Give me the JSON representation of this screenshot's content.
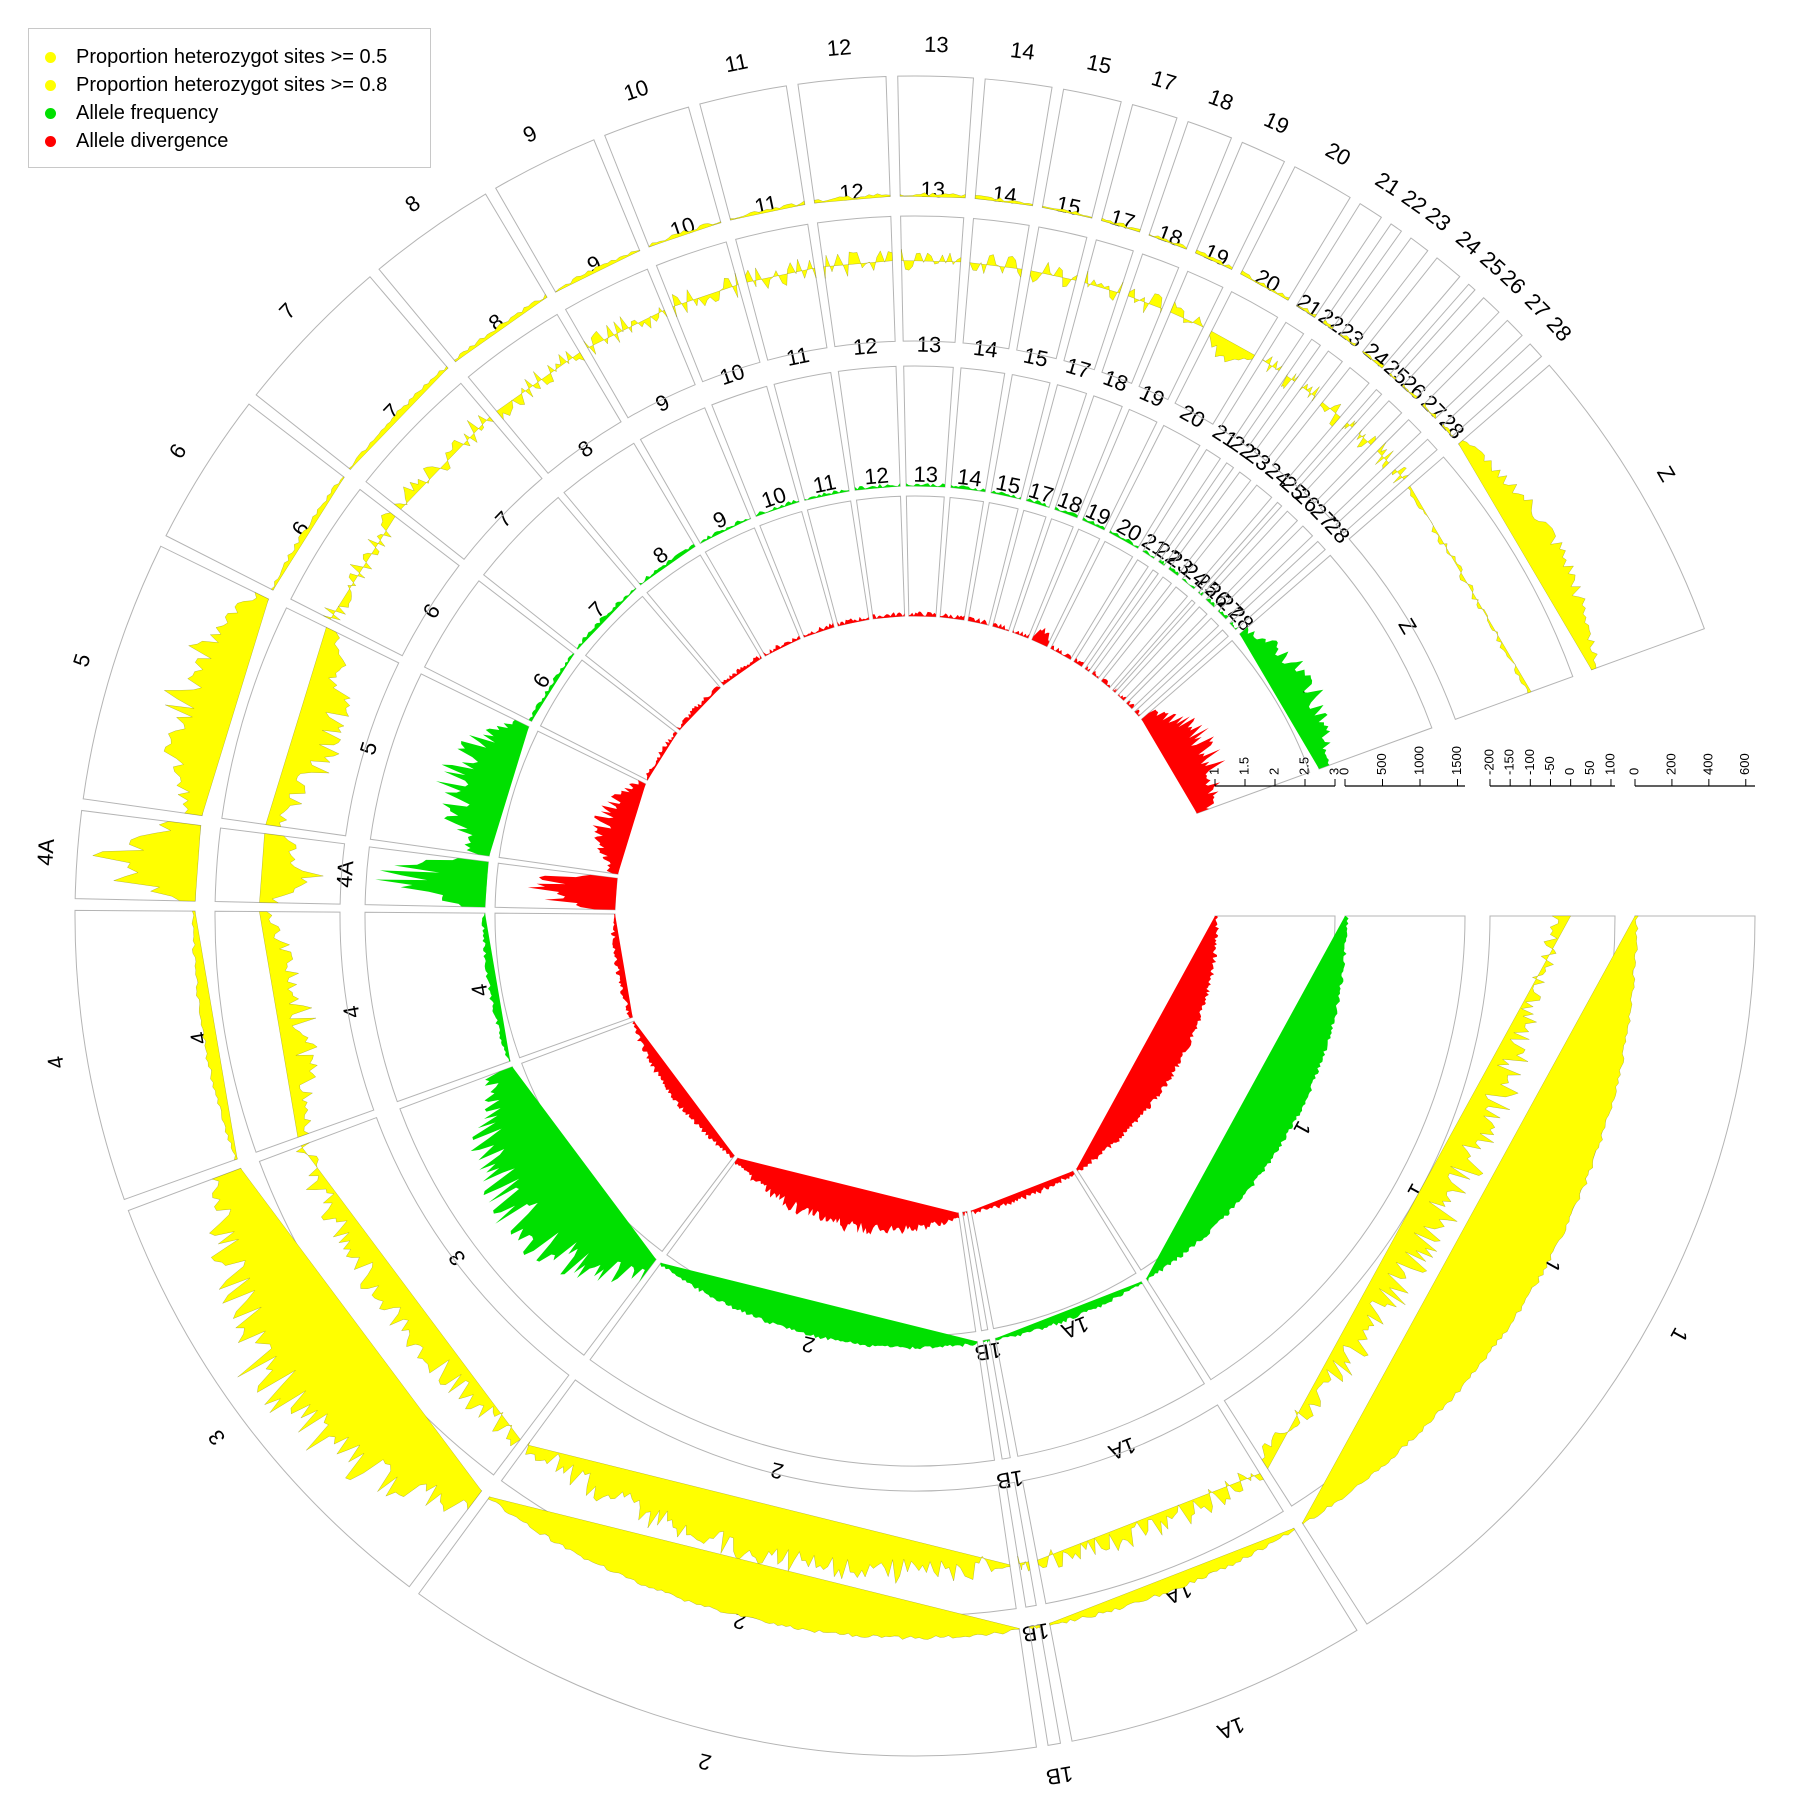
{
  "legend": {
    "items": [
      {
        "label": "Proportion heterozygot sites >= 0.5",
        "color": "#ffff00"
      },
      {
        "label": "Proportion heterozygot sites >= 0.8",
        "color": "#ffff00"
      },
      {
        "label": "Allele frequency",
        "color": "#00e000"
      },
      {
        "label": "Allele divergence",
        "color": "#ff0000"
      }
    ]
  },
  "chart_data": {
    "type": "area",
    "layout": "circular",
    "legend_position": "top-left",
    "chromosomes": [
      {
        "name": "1",
        "size": 200
      },
      {
        "name": "1A",
        "size": 73
      },
      {
        "name": "1B",
        "size": 3
      },
      {
        "name": "2",
        "size": 155
      },
      {
        "name": "3",
        "size": 113
      },
      {
        "name": "4",
        "size": 70
      },
      {
        "name": "4A",
        "size": 21
      },
      {
        "name": "5",
        "size": 63
      },
      {
        "name": "6",
        "size": 37
      },
      {
        "name": "7",
        "size": 39
      },
      {
        "name": "8",
        "size": 31
      },
      {
        "name": "9",
        "size": 26
      },
      {
        "name": "10",
        "size": 21
      },
      {
        "name": "11",
        "size": 21
      },
      {
        "name": "12",
        "size": 21
      },
      {
        "name": "13",
        "size": 18
      },
      {
        "name": "14",
        "size": 16
      },
      {
        "name": "15",
        "size": 14
      },
      {
        "name": "17",
        "size": 11
      },
      {
        "name": "18",
        "size": 11
      },
      {
        "name": "19",
        "size": 11
      },
      {
        "name": "20",
        "size": 15
      },
      {
        "name": "21",
        "size": 6
      },
      {
        "name": "22",
        "size": 3
      },
      {
        "name": "23",
        "size": 5
      },
      {
        "name": "24",
        "size": 7
      },
      {
        "name": "25",
        "size": 2
      },
      {
        "name": "26",
        "size": 5
      },
      {
        "name": "27",
        "size": 5
      },
      {
        "name": "28",
        "size": 4
      },
      {
        "name": "Z",
        "size": 73
      }
    ],
    "tracks": [
      {
        "series": "Allele divergence",
        "color": "#ff0000",
        "axis_ticks": [
          "1",
          "1.5",
          "2",
          "2.5",
          "3"
        ],
        "ylim": [
          1,
          3
        ],
        "peaks": [
          {
            "chrom": "4A",
            "value": 2.9
          },
          {
            "chrom": "5",
            "value": 1.6
          },
          {
            "chrom": "Z",
            "value": 1.9
          },
          {
            "chrom": "2",
            "value": 1.4
          },
          {
            "chrom": "19",
            "value": 1.3
          }
        ]
      },
      {
        "series": "Allele frequency",
        "color": "#00e000",
        "axis_ticks": [
          "0",
          "500",
          "1000",
          "1500"
        ],
        "ylim": [
          0,
          1600
        ],
        "peaks": [
          {
            "chrom": "4A",
            "value": 1550
          },
          {
            "chrom": "3",
            "value": 1300
          },
          {
            "chrom": "5",
            "value": 950
          },
          {
            "chrom": "Z",
            "value": 500
          }
        ]
      },
      {
        "series": "Proportion heterozygot sites >= 0.8",
        "color": "#ffff00",
        "axis_ticks": [
          "-200",
          "-150",
          "-100",
          "-50",
          "0",
          "50",
          "100"
        ],
        "ylim": [
          -200,
          110
        ],
        "peaks": [
          {
            "chrom": "5",
            "value": -150
          },
          {
            "chrom": "4A",
            "value": -160
          },
          {
            "chrom": "4",
            "value": -120
          },
          {
            "chrom": "1",
            "value": -170
          },
          {
            "chrom": "20",
            "value": -60
          },
          {
            "chrom": "Z",
            "value": -40
          }
        ]
      },
      {
        "series": "Proportion heterozygot sites >= 0.5",
        "color": "#ffff00",
        "axis_ticks": [
          "0",
          "200",
          "400",
          "600"
        ],
        "ylim": [
          0,
          650
        ],
        "peaks": [
          {
            "chrom": "3",
            "value": 550
          },
          {
            "chrom": "5",
            "value": 350
          },
          {
            "chrom": "4A",
            "value": 620
          },
          {
            "chrom": "Z",
            "value": 150
          }
        ]
      }
    ]
  }
}
